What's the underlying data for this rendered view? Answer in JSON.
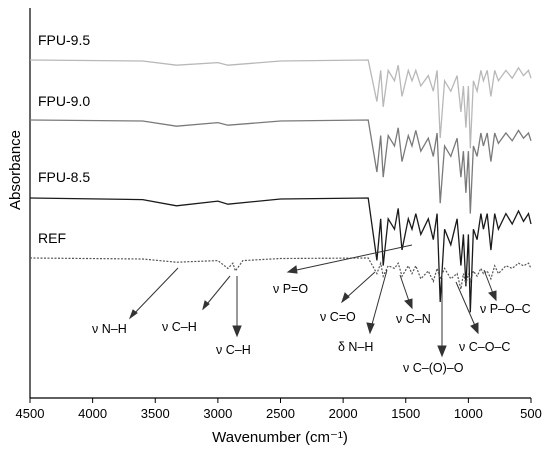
{
  "chart_data": {
    "type": "line",
    "xlabel": "Wavenumber (cm⁻¹)",
    "ylabel": "Absorbance",
    "xlim": [
      4500,
      500
    ],
    "x_axis_reversed": true,
    "x_ticks": [
      4500,
      4000,
      3500,
      3000,
      2500,
      2000,
      1500,
      1000,
      500
    ],
    "x_tick_labels": [
      "4500",
      "4000",
      "3500",
      "3000",
      "2500",
      "2000",
      "1500",
      "1000",
      "500"
    ],
    "y_ticks_shown": false,
    "grid": false,
    "legend": "none",
    "series_note": "offset stacked spectra, absorbance in arbitrary units with series labels printed on the plot",
    "series": [
      {
        "name": "FPU-9.5",
        "color": "#b8b8b8",
        "style": "solid",
        "offset": 0,
        "points": [
          [
            4500,
            0
          ],
          [
            3600,
            0.002
          ],
          [
            3330,
            0.01
          ],
          [
            3000,
            0.005
          ],
          [
            2920,
            0.01
          ],
          [
            2500,
            0.002
          ],
          [
            1800,
            0
          ],
          [
            1730,
            0.08
          ],
          [
            1700,
            0.02
          ],
          [
            1680,
            0.09
          ],
          [
            1640,
            0.02
          ],
          [
            1590,
            0.04
          ],
          [
            1560,
            0.01
          ],
          [
            1530,
            0.07
          ],
          [
            1480,
            0.02
          ],
          [
            1450,
            0.04
          ],
          [
            1420,
            0.02
          ],
          [
            1380,
            0.05
          ],
          [
            1320,
            0.03
          ],
          [
            1280,
            0.06
          ],
          [
            1250,
            0.02
          ],
          [
            1225,
            0.15
          ],
          [
            1190,
            0.04
          ],
          [
            1140,
            0.06
          ],
          [
            1090,
            0.03
          ],
          [
            1060,
            0.1
          ],
          [
            1040,
            0.05
          ],
          [
            1020,
            0.13
          ],
          [
            1000,
            0.05
          ],
          [
            985,
            0.17
          ],
          [
            960,
            0.04
          ],
          [
            930,
            0.06
          ],
          [
            900,
            0.02
          ],
          [
            880,
            0.04
          ],
          [
            850,
            0.02
          ],
          [
            820,
            0.07
          ],
          [
            790,
            0.02
          ],
          [
            760,
            0.04
          ],
          [
            700,
            0.02
          ],
          [
            650,
            0.035
          ],
          [
            600,
            0.015
          ],
          [
            560,
            0.03
          ],
          [
            520,
            0.02
          ],
          [
            500,
            0.035
          ]
        ]
      },
      {
        "name": "FPU-9.0",
        "color": "#7a7a7a",
        "style": "solid",
        "offset": 0,
        "points": [
          [
            4500,
            0
          ],
          [
            3600,
            0.002
          ],
          [
            3330,
            0.012
          ],
          [
            3000,
            0.005
          ],
          [
            2920,
            0.01
          ],
          [
            2500,
            0.002
          ],
          [
            1800,
            0
          ],
          [
            1730,
            0.1
          ],
          [
            1700,
            0.03
          ],
          [
            1680,
            0.11
          ],
          [
            1640,
            0.03
          ],
          [
            1590,
            0.05
          ],
          [
            1560,
            0.015
          ],
          [
            1530,
            0.08
          ],
          [
            1480,
            0.03
          ],
          [
            1450,
            0.05
          ],
          [
            1420,
            0.02
          ],
          [
            1380,
            0.06
          ],
          [
            1320,
            0.035
          ],
          [
            1280,
            0.07
          ],
          [
            1250,
            0.025
          ],
          [
            1225,
            0.16
          ],
          [
            1190,
            0.05
          ],
          [
            1140,
            0.07
          ],
          [
            1090,
            0.035
          ],
          [
            1060,
            0.11
          ],
          [
            1040,
            0.06
          ],
          [
            1020,
            0.14
          ],
          [
            1000,
            0.06
          ],
          [
            985,
            0.18
          ],
          [
            960,
            0.05
          ],
          [
            930,
            0.07
          ],
          [
            900,
            0.025
          ],
          [
            880,
            0.05
          ],
          [
            850,
            0.025
          ],
          [
            820,
            0.08
          ],
          [
            790,
            0.025
          ],
          [
            760,
            0.045
          ],
          [
            700,
            0.025
          ],
          [
            650,
            0.04
          ],
          [
            600,
            0.02
          ],
          [
            560,
            0.035
          ],
          [
            520,
            0.025
          ],
          [
            500,
            0.04
          ]
        ]
      },
      {
        "name": "FPU-8.5",
        "color": "#1a1a1a",
        "style": "solid",
        "offset": 0,
        "points": [
          [
            4500,
            0
          ],
          [
            3600,
            0.003
          ],
          [
            3330,
            0.015
          ],
          [
            3000,
            0.006
          ],
          [
            2920,
            0.012
          ],
          [
            2500,
            0.002
          ],
          [
            1800,
            0
          ],
          [
            1730,
            0.12
          ],
          [
            1700,
            0.04
          ],
          [
            1680,
            0.13
          ],
          [
            1640,
            0.04
          ],
          [
            1590,
            0.06
          ],
          [
            1560,
            0.02
          ],
          [
            1530,
            0.1
          ],
          [
            1480,
            0.04
          ],
          [
            1450,
            0.06
          ],
          [
            1420,
            0.03
          ],
          [
            1380,
            0.07
          ],
          [
            1320,
            0.04
          ],
          [
            1280,
            0.08
          ],
          [
            1250,
            0.03
          ],
          [
            1225,
            0.2
          ],
          [
            1190,
            0.06
          ],
          [
            1140,
            0.09
          ],
          [
            1090,
            0.04
          ],
          [
            1060,
            0.13
          ],
          [
            1040,
            0.07
          ],
          [
            1020,
            0.17
          ],
          [
            1000,
            0.07
          ],
          [
            985,
            0.22
          ],
          [
            960,
            0.06
          ],
          [
            930,
            0.08
          ],
          [
            900,
            0.03
          ],
          [
            880,
            0.06
          ],
          [
            850,
            0.03
          ],
          [
            820,
            0.1
          ],
          [
            790,
            0.03
          ],
          [
            760,
            0.06
          ],
          [
            700,
            0.03
          ],
          [
            650,
            0.05
          ],
          [
            600,
            0.025
          ],
          [
            560,
            0.045
          ],
          [
            520,
            0.03
          ],
          [
            500,
            0.05
          ]
        ]
      },
      {
        "name": "REF",
        "color": "#555555",
        "style": "dotted",
        "offset": 0,
        "points": [
          [
            4500,
            0
          ],
          [
            3600,
            0.002
          ],
          [
            3330,
            0.008
          ],
          [
            3000,
            0.005
          ],
          [
            2920,
            0.02
          ],
          [
            2880,
            0.01
          ],
          [
            2860,
            0.025
          ],
          [
            2800,
            0.005
          ],
          [
            2500,
            0.001
          ],
          [
            1800,
            0
          ],
          [
            1730,
            0.03
          ],
          [
            1700,
            0.01
          ],
          [
            1680,
            0.035
          ],
          [
            1640,
            0.015
          ],
          [
            1590,
            0.02
          ],
          [
            1560,
            0.01
          ],
          [
            1530,
            0.035
          ],
          [
            1480,
            0.015
          ],
          [
            1450,
            0.03
          ],
          [
            1420,
            0.015
          ],
          [
            1380,
            0.04
          ],
          [
            1320,
            0.025
          ],
          [
            1280,
            0.045
          ],
          [
            1250,
            0.02
          ],
          [
            1225,
            0.04
          ],
          [
            1190,
            0.02
          ],
          [
            1140,
            0.04
          ],
          [
            1090,
            0.03
          ],
          [
            1060,
            0.06
          ],
          [
            1040,
            0.03
          ],
          [
            1020,
            0.05
          ],
          [
            1000,
            0.03
          ],
          [
            985,
            0.045
          ],
          [
            960,
            0.025
          ],
          [
            930,
            0.035
          ],
          [
            900,
            0.02
          ],
          [
            880,
            0.03
          ],
          [
            850,
            0.025
          ],
          [
            820,
            0.04
          ],
          [
            790,
            0.015
          ],
          [
            760,
            0.03
          ],
          [
            700,
            0.015
          ],
          [
            650,
            0.02
          ],
          [
            600,
            0.01
          ],
          [
            560,
            0.015
          ],
          [
            520,
            0.01
          ],
          [
            500,
            0.02
          ]
        ]
      }
    ],
    "annotations": [
      {
        "text": "ν N–H"
      },
      {
        "text": "ν C–H"
      },
      {
        "text": "ν C–H"
      },
      {
        "text": "ν P=O"
      },
      {
        "text": "ν C=O"
      },
      {
        "text": "δ N–H"
      },
      {
        "text": "ν C–N"
      },
      {
        "text": "ν C–(O)–O"
      },
      {
        "text": "ν C–O–C"
      },
      {
        "text": "ν P–O–C"
      }
    ]
  }
}
